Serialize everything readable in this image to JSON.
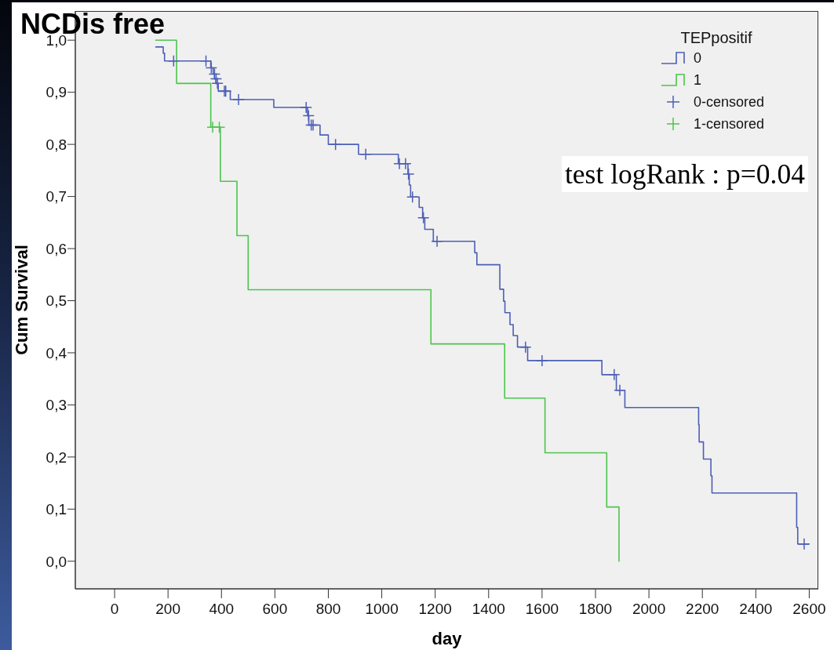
{
  "chart_data": {
    "type": "step",
    "title": "NCDis free",
    "xlabel": "day",
    "ylabel": "Cum Survival",
    "legend_title": "TEPpositif",
    "legend": "top right",
    "grid": false,
    "annotations": [
      "test logRank : p=0.04"
    ],
    "xlim": [
      -147,
      2634
    ],
    "ylim": [
      -0.053,
      1.056
    ],
    "xticks": [
      0,
      200,
      400,
      600,
      800,
      1000,
      1200,
      1400,
      1600,
      1800,
      2000,
      2200,
      2400,
      2600
    ],
    "yticks": [
      {
        "value": 0,
        "label": "0,0"
      },
      {
        "value": 0.1,
        "label": "0,1"
      },
      {
        "value": 0.2,
        "label": "0,2"
      },
      {
        "value": 0.3,
        "label": "0,3"
      },
      {
        "value": 0.4,
        "label": "0,4"
      },
      {
        "value": 0.5,
        "label": "0,5"
      },
      {
        "value": 0.6,
        "label": "0,6"
      },
      {
        "value": 0.7,
        "label": "0,7"
      },
      {
        "value": 0.8,
        "label": "0,8"
      },
      {
        "value": 0.9,
        "label": "0,9"
      },
      {
        "value": 1,
        "label": "1,0"
      }
    ],
    "series": [
      {
        "name": "0",
        "color": "#4d5fb5",
        "x": [
          154,
          182,
          187,
          360,
          369,
          374,
          379,
          388,
          433,
          596,
          722,
          727,
          769,
          800,
          913,
          1062,
          1098,
          1103,
          1108,
          1140,
          1153,
          1161,
          1193,
          1348,
          1356,
          1442,
          1456,
          1461,
          1480,
          1492,
          1508,
          1546,
          1824,
          1878,
          1910,
          2186,
          2188,
          2204,
          2232,
          2236,
          2553,
          2557,
          2598
        ],
        "values": [
          0.987,
          0.975,
          0.96,
          0.947,
          0.935,
          0.926,
          0.917,
          0.902,
          0.886,
          0.871,
          0.855,
          0.837,
          0.818,
          0.8,
          0.781,
          0.763,
          0.743,
          0.722,
          0.699,
          0.679,
          0.659,
          0.637,
          0.614,
          0.592,
          0.569,
          0.522,
          0.499,
          0.477,
          0.454,
          0.433,
          0.411,
          0.385,
          0.358,
          0.328,
          0.295,
          0.262,
          0.229,
          0.196,
          0.164,
          0.131,
          0.065,
          0.033,
          0.033
        ]
      },
      {
        "name": "1",
        "color": "#4cc44c",
        "x": [
          154,
          232,
          360,
          396,
          458,
          500,
          1184,
          1460,
          1611,
          1842,
          1888
        ],
        "values": [
          1,
          0.917,
          0.833,
          0.729,
          0.625,
          0.521,
          0.417,
          0.313,
          0.208,
          0.104,
          0
        ]
      },
      {
        "name": "0-censored",
        "type": "scatter",
        "marker": "cross",
        "color": "#4d5fb5",
        "x": [
          221,
          342,
          362,
          374,
          380,
          385,
          411,
          416,
          464,
          717,
          726,
          736,
          743,
          827,
          940,
          1066,
          1089,
          1100,
          1115,
          1156,
          1207,
          1538,
          1600,
          1870,
          1891,
          2581
        ],
        "values": [
          0.96,
          0.96,
          0.947,
          0.935,
          0.926,
          0.917,
          0.902,
          0.902,
          0.886,
          0.871,
          0.855,
          0.837,
          0.837,
          0.8,
          0.781,
          0.763,
          0.763,
          0.743,
          0.699,
          0.659,
          0.614,
          0.411,
          0.385,
          0.358,
          0.328,
          0.033
        ]
      },
      {
        "name": "1-censored",
        "type": "scatter",
        "marker": "cross",
        "color": "#4cc44c",
        "x": [
          367,
          392
        ],
        "values": [
          0.833,
          0.833
        ]
      }
    ]
  }
}
